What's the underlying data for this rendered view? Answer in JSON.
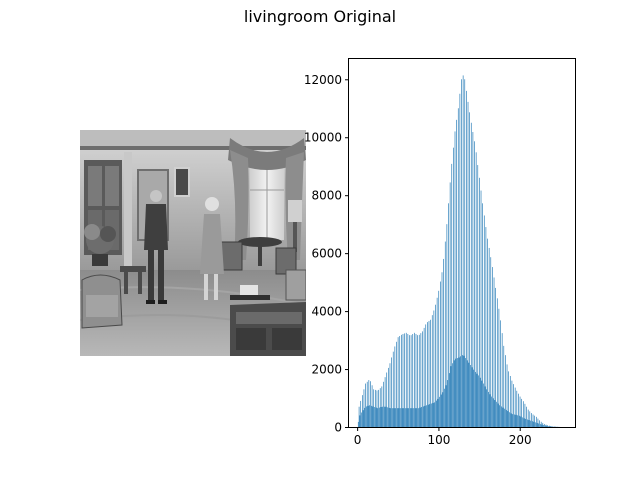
{
  "figure": {
    "title": "livingroom Original"
  },
  "image_panel": {
    "icon": "grayscale-room-photo",
    "grid": false,
    "axes": "off"
  },
  "chart_data": {
    "type": "bar",
    "title": "",
    "xlabel": "",
    "ylabel": "",
    "xlim": [
      -10,
      268
    ],
    "ylim": [
      0,
      12700
    ],
    "xticks": [
      0,
      100,
      200
    ],
    "yticks": [
      0,
      2000,
      4000,
      6000,
      8000,
      10000,
      12000
    ],
    "grid": false,
    "bar_color": "#1f77b4",
    "anchors_upper": [
      [
        0,
        0
      ],
      [
        2,
        700
      ],
      [
        5,
        1000
      ],
      [
        10,
        1500
      ],
      [
        15,
        1650
      ],
      [
        20,
        1300
      ],
      [
        25,
        1250
      ],
      [
        30,
        1400
      ],
      [
        35,
        1800
      ],
      [
        40,
        2200
      ],
      [
        45,
        2700
      ],
      [
        50,
        3100
      ],
      [
        55,
        3200
      ],
      [
        60,
        3250
      ],
      [
        65,
        3150
      ],
      [
        70,
        3250
      ],
      [
        75,
        3150
      ],
      [
        80,
        3300
      ],
      [
        85,
        3600
      ],
      [
        90,
        3700
      ],
      [
        95,
        4100
      ],
      [
        100,
        4700
      ],
      [
        105,
        5500
      ],
      [
        110,
        7000
      ],
      [
        115,
        8800
      ],
      [
        120,
        10200
      ],
      [
        124,
        11000
      ],
      [
        128,
        12000
      ],
      [
        131,
        12200
      ],
      [
        135,
        11400
      ],
      [
        140,
        10500
      ],
      [
        145,
        9700
      ],
      [
        150,
        8600
      ],
      [
        155,
        7500
      ],
      [
        160,
        6500
      ],
      [
        165,
        5700
      ],
      [
        170,
        4800
      ],
      [
        175,
        3900
      ],
      [
        180,
        2800
      ],
      [
        185,
        2000
      ],
      [
        190,
        1600
      ],
      [
        195,
        1300
      ],
      [
        200,
        1050
      ],
      [
        205,
        850
      ],
      [
        210,
        600
      ],
      [
        215,
        450
      ],
      [
        220,
        350
      ],
      [
        225,
        200
      ],
      [
        230,
        100
      ],
      [
        235,
        50
      ],
      [
        240,
        20
      ],
      [
        245,
        10
      ],
      [
        250,
        0
      ],
      [
        255,
        0
      ]
    ],
    "anchors_lower": [
      [
        0,
        0
      ],
      [
        2,
        350
      ],
      [
        5,
        500
      ],
      [
        10,
        700
      ],
      [
        15,
        750
      ],
      [
        20,
        700
      ],
      [
        25,
        650
      ],
      [
        30,
        700
      ],
      [
        35,
        700
      ],
      [
        40,
        650
      ],
      [
        45,
        650
      ],
      [
        50,
        650
      ],
      [
        55,
        650
      ],
      [
        60,
        650
      ],
      [
        65,
        650
      ],
      [
        70,
        650
      ],
      [
        75,
        650
      ],
      [
        80,
        700
      ],
      [
        85,
        750
      ],
      [
        90,
        800
      ],
      [
        95,
        850
      ],
      [
        100,
        1000
      ],
      [
        105,
        1200
      ],
      [
        110,
        1500
      ],
      [
        115,
        2100
      ],
      [
        120,
        2350
      ],
      [
        125,
        2400
      ],
      [
        130,
        2500
      ],
      [
        135,
        2300
      ],
      [
        140,
        2100
      ],
      [
        145,
        1900
      ],
      [
        150,
        1750
      ],
      [
        155,
        1500
      ],
      [
        160,
        1250
      ],
      [
        165,
        1050
      ],
      [
        170,
        900
      ],
      [
        175,
        750
      ],
      [
        180,
        650
      ],
      [
        185,
        550
      ],
      [
        190,
        450
      ],
      [
        195,
        420
      ],
      [
        200,
        380
      ],
      [
        205,
        300
      ],
      [
        210,
        250
      ],
      [
        215,
        200
      ],
      [
        220,
        150
      ],
      [
        225,
        100
      ],
      [
        230,
        60
      ],
      [
        235,
        30
      ],
      [
        240,
        10
      ],
      [
        245,
        5
      ],
      [
        250,
        0
      ],
      [
        255,
        0
      ]
    ]
  }
}
